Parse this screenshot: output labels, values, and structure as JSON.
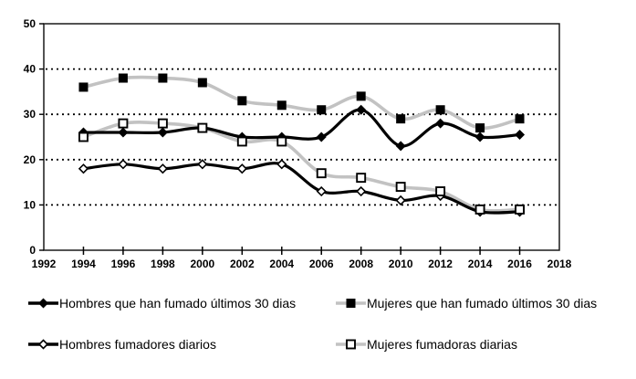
{
  "chart_data": {
    "type": "line",
    "title": "",
    "xlabel": "",
    "ylabel": "",
    "x": [
      1994,
      1996,
      1998,
      2000,
      2002,
      2004,
      2006,
      2008,
      2010,
      2012,
      2014,
      2016
    ],
    "series": [
      {
        "name": "Hombres que han fumado últimos 30 dias",
        "color": "#000000",
        "marker": "diamond-filled",
        "marker_color": "#000000",
        "values": [
          26,
          26,
          26,
          27,
          25,
          25,
          25,
          31,
          23,
          28,
          25,
          25.5
        ]
      },
      {
        "name": "Mujeres que han fumado últimos 30 dias",
        "color": "#c2c2c2",
        "marker": "square-filled",
        "marker_color": "#000000",
        "values": [
          36,
          38,
          38,
          37,
          33,
          32,
          31,
          34,
          29,
          31,
          27,
          29
        ]
      },
      {
        "name": "Hombres fumadores diarios",
        "color": "#000000",
        "marker": "diamond-open",
        "marker_color": "#000000",
        "values": [
          18,
          19,
          18,
          19,
          18,
          19,
          13,
          13,
          11,
          12,
          8.5,
          8.5
        ]
      },
      {
        "name": "Mujeres fumadoras diarias",
        "color": "#c2c2c2",
        "marker": "square-open",
        "marker_color": "#000000",
        "values": [
          25,
          28,
          28,
          27,
          24,
          24,
          17,
          16,
          14,
          13,
          9,
          9
        ]
      }
    ],
    "xlim": [
      1992,
      2018
    ],
    "ylim": [
      0,
      50
    ],
    "xticks": [
      1992,
      1994,
      1996,
      1998,
      2000,
      2002,
      2004,
      2006,
      2008,
      2010,
      2012,
      2014,
      2016,
      2018
    ],
    "yticks": [
      0,
      10,
      20,
      30,
      40,
      50
    ],
    "grid": "horizontal-dotted",
    "line_style": "smoothed",
    "legend_position": "bottom"
  }
}
